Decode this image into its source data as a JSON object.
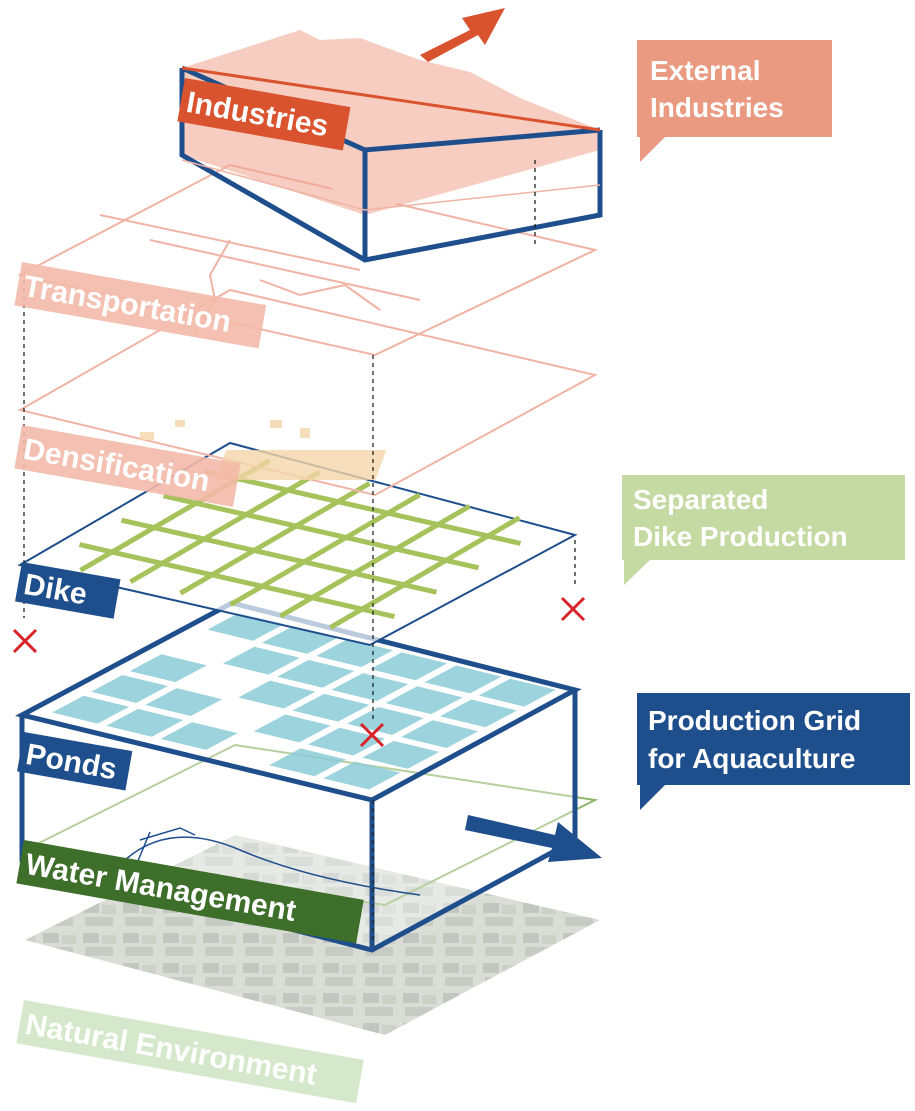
{
  "layers": {
    "industries": "Industries",
    "transportation": "Transportation",
    "densification": "Densification",
    "dike": "Dike",
    "ponds": "Ponds",
    "water_management": "Water Management",
    "natural_environment": "Natural Environment"
  },
  "callouts": {
    "external_industries": [
      "External",
      "Industries"
    ],
    "separated_dike": [
      "Separated",
      "Dike Production"
    ],
    "production_grid": [
      "Production Grid",
      "for Aquaculture"
    ]
  }
}
